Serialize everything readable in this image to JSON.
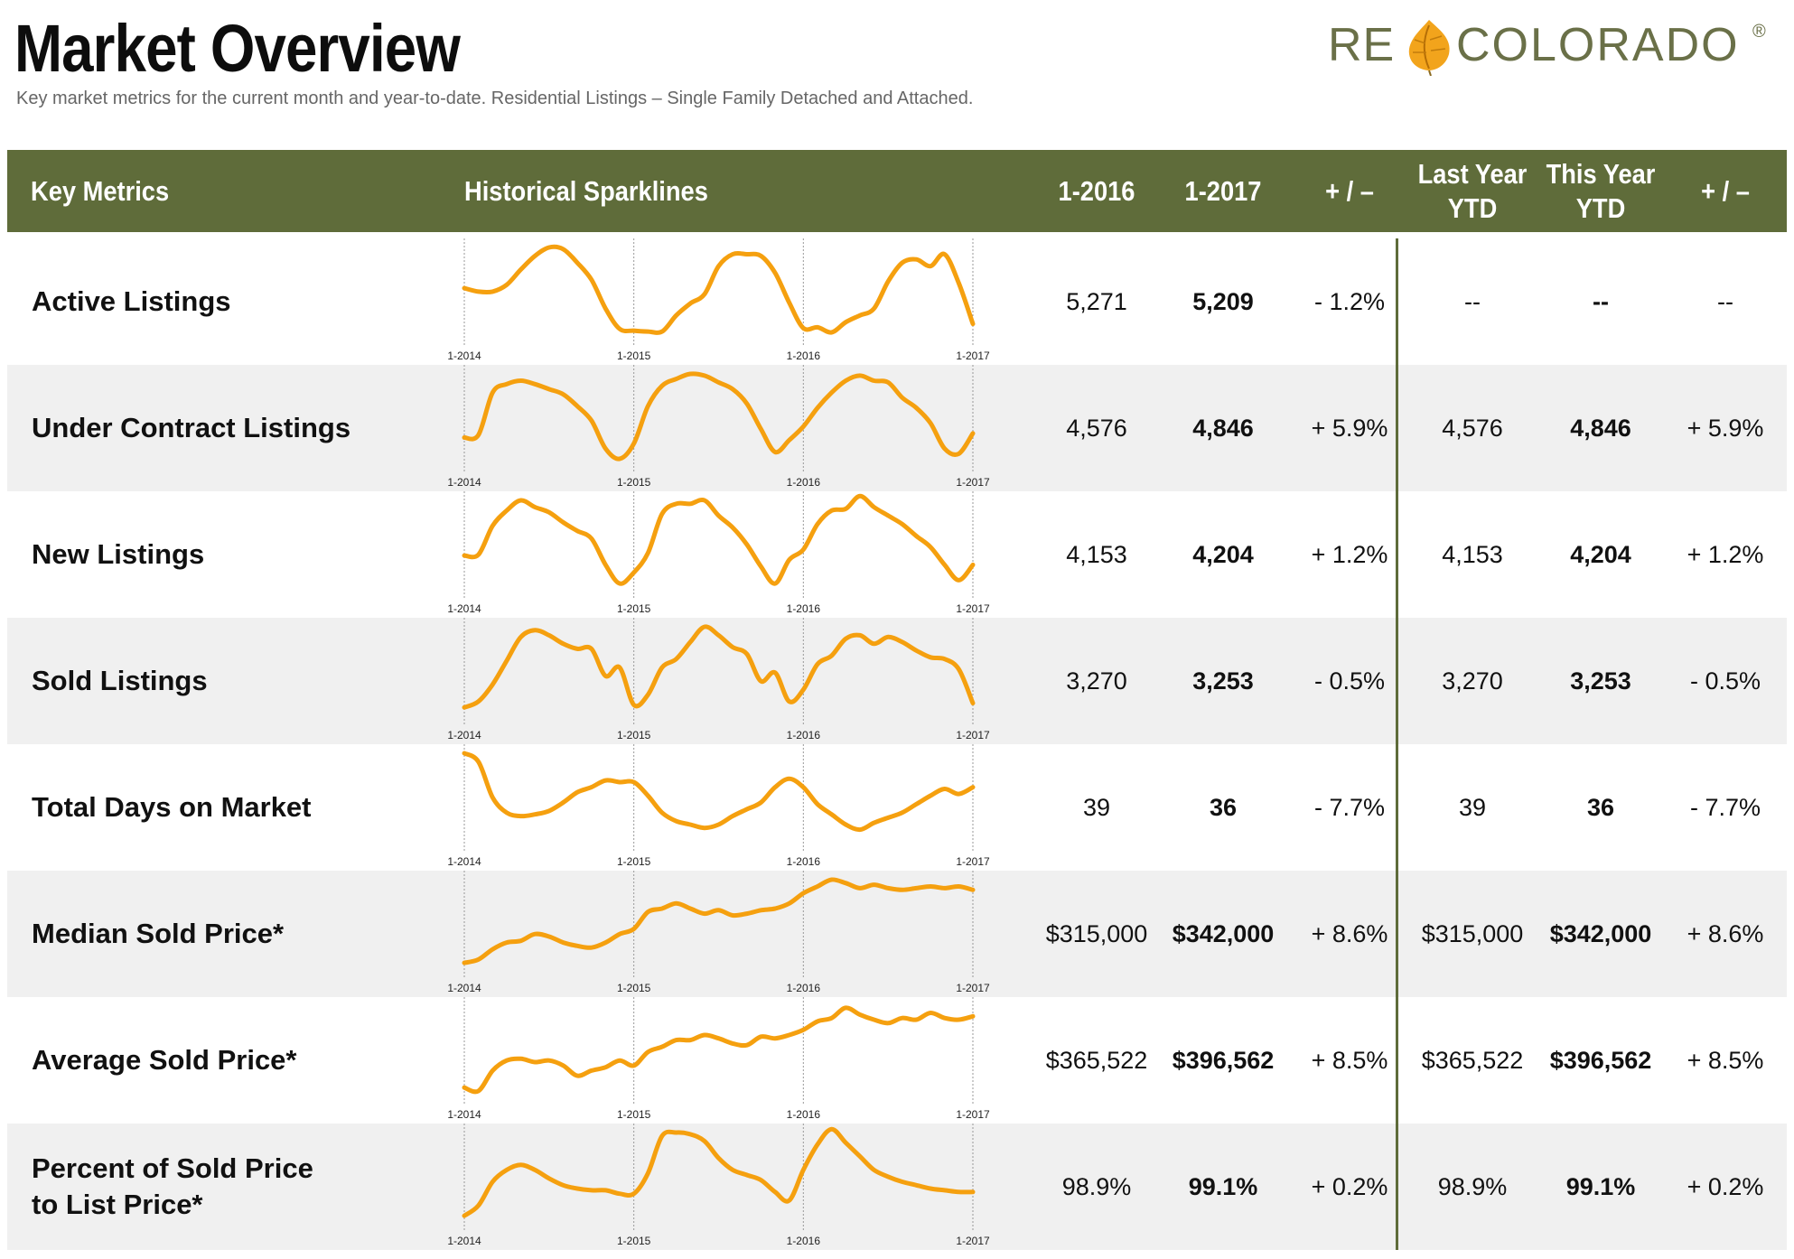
{
  "title": "Market Overview",
  "subtitle": "Key market metrics for the current month and year-to-date. Residential Listings – Single Family Detached and Attached.",
  "logo": {
    "left_text": "RE",
    "right_text": "COLORADO",
    "registered": "®",
    "leaf_icon": "aspen-leaf-icon",
    "colors": {
      "text": "#6a7048",
      "leaf": "#f2a41c"
    }
  },
  "colors": {
    "header_bg": "#5f6c3a",
    "row_shade": "#f0f0f0",
    "sparkline": "#f5a00f",
    "gridline": "#999999"
  },
  "header": {
    "key_metrics": "Key Metrics",
    "sparklines": "Historical Sparklines",
    "col_prev": "1-2016",
    "col_curr": "1-2017",
    "col_change": "+ / –",
    "col_ly_line1": "Last Year",
    "col_ly_line2": "YTD",
    "col_ty_line1": "This Year",
    "col_ty_line2": "YTD",
    "col_ytd_change": "+ / –"
  },
  "chart_data": {
    "type": "line",
    "x_tick_labels": [
      "1-2014",
      "1-2015",
      "1-2016",
      "1-2017"
    ],
    "x_range": [
      "1-2014",
      "1-2017"
    ],
    "note": "Each sparkline shows 37 monthly points, 1-2014 through 1-2017, relative scale without a value axis.",
    "series": [
      {
        "name": "Active Listings",
        "values": [
          0.52,
          0.48,
          0.48,
          0.56,
          0.74,
          0.9,
          1.0,
          0.98,
          0.82,
          0.62,
          0.28,
          0.04,
          0.02,
          0.01,
          0.01,
          0.2,
          0.34,
          0.45,
          0.78,
          0.92,
          0.92,
          0.9,
          0.7,
          0.35,
          0.05,
          0.06,
          0.0,
          0.12,
          0.2,
          0.28,
          0.6,
          0.82,
          0.86,
          0.78,
          0.92,
          0.58,
          0.1
        ]
      },
      {
        "name": "Under Contract Listings",
        "values": [
          0.25,
          0.28,
          0.78,
          0.88,
          0.92,
          0.88,
          0.82,
          0.76,
          0.62,
          0.45,
          0.12,
          0.0,
          0.18,
          0.62,
          0.86,
          0.94,
          1.0,
          0.98,
          0.9,
          0.82,
          0.65,
          0.35,
          0.08,
          0.22,
          0.38,
          0.6,
          0.78,
          0.92,
          0.98,
          0.92,
          0.9,
          0.72,
          0.6,
          0.42,
          0.12,
          0.06,
          0.3
        ]
      },
      {
        "name": "New Listings",
        "values": [
          0.35,
          0.36,
          0.7,
          0.88,
          1.0,
          0.92,
          0.86,
          0.74,
          0.64,
          0.55,
          0.24,
          0.02,
          0.15,
          0.38,
          0.84,
          0.96,
          0.96,
          1.0,
          0.82,
          0.68,
          0.48,
          0.22,
          0.02,
          0.3,
          0.42,
          0.72,
          0.88,
          0.9,
          1.06,
          0.92,
          0.82,
          0.72,
          0.58,
          0.45,
          0.24,
          0.06,
          0.24
        ]
      },
      {
        "name": "Sold Listings",
        "values": [
          0.05,
          0.12,
          0.32,
          0.6,
          0.88,
          0.96,
          0.9,
          0.8,
          0.74,
          0.74,
          0.42,
          0.52,
          0.08,
          0.2,
          0.52,
          0.62,
          0.82,
          1.0,
          0.9,
          0.76,
          0.68,
          0.36,
          0.46,
          0.12,
          0.26,
          0.56,
          0.66,
          0.86,
          0.9,
          0.8,
          0.88,
          0.82,
          0.72,
          0.64,
          0.62,
          0.5,
          0.1
        ]
      },
      {
        "name": "Total Days on Market",
        "values": [
          1.0,
          0.9,
          0.48,
          0.3,
          0.26,
          0.28,
          0.32,
          0.42,
          0.54,
          0.6,
          0.68,
          0.66,
          0.66,
          0.5,
          0.3,
          0.2,
          0.16,
          0.12,
          0.16,
          0.26,
          0.34,
          0.42,
          0.6,
          0.7,
          0.6,
          0.4,
          0.28,
          0.16,
          0.1,
          0.18,
          0.24,
          0.3,
          0.4,
          0.5,
          0.58,
          0.52,
          0.6
        ]
      },
      {
        "name": "Median Sold Price*",
        "values": [
          0.02,
          0.06,
          0.18,
          0.26,
          0.28,
          0.36,
          0.33,
          0.26,
          0.22,
          0.2,
          0.26,
          0.36,
          0.42,
          0.62,
          0.66,
          0.72,
          0.66,
          0.6,
          0.64,
          0.58,
          0.6,
          0.64,
          0.66,
          0.72,
          0.84,
          0.92,
          1.0,
          0.96,
          0.9,
          0.94,
          0.9,
          0.88,
          0.9,
          0.92,
          0.9,
          0.92,
          0.88
        ]
      },
      {
        "name": "Average Sold Price*",
        "values": [
          0.04,
          0.0,
          0.24,
          0.36,
          0.38,
          0.34,
          0.36,
          0.3,
          0.18,
          0.24,
          0.28,
          0.36,
          0.3,
          0.46,
          0.52,
          0.6,
          0.6,
          0.66,
          0.62,
          0.56,
          0.54,
          0.64,
          0.62,
          0.66,
          0.72,
          0.82,
          0.86,
          0.98,
          0.9,
          0.84,
          0.8,
          0.86,
          0.84,
          0.92,
          0.86,
          0.84,
          0.88
        ]
      },
      {
        "name": "Percent of Sold Price to List Price*",
        "values": [
          0.02,
          0.14,
          0.42,
          0.56,
          0.62,
          0.56,
          0.46,
          0.38,
          0.34,
          0.32,
          0.32,
          0.28,
          0.28,
          0.52,
          0.96,
          1.0,
          0.98,
          0.9,
          0.7,
          0.56,
          0.5,
          0.44,
          0.3,
          0.2,
          0.56,
          0.86,
          1.04,
          0.88,
          0.72,
          0.56,
          0.48,
          0.42,
          0.38,
          0.34,
          0.32,
          0.3,
          0.3
        ]
      }
    ]
  },
  "rows": [
    {
      "label_lines": [
        "Active Listings"
      ],
      "prev": "5,271",
      "curr": "5,209",
      "change": "- 1.2%",
      "ly": "--",
      "ty": "--",
      "ytd_change": "--"
    },
    {
      "label_lines": [
        "Under Contract Listings"
      ],
      "prev": "4,576",
      "curr": "4,846",
      "change": "+ 5.9%",
      "ly": "4,576",
      "ty": "4,846",
      "ytd_change": "+ 5.9%"
    },
    {
      "label_lines": [
        "New Listings"
      ],
      "prev": "4,153",
      "curr": "4,204",
      "change": "+ 1.2%",
      "ly": "4,153",
      "ty": "4,204",
      "ytd_change": "+ 1.2%"
    },
    {
      "label_lines": [
        "Sold Listings"
      ],
      "prev": "3,270",
      "curr": "3,253",
      "change": "- 0.5%",
      "ly": "3,270",
      "ty": "3,253",
      "ytd_change": "- 0.5%"
    },
    {
      "label_lines": [
        "Total Days on Market"
      ],
      "prev": "39",
      "curr": "36",
      "change": "- 7.7%",
      "ly": "39",
      "ty": "36",
      "ytd_change": "- 7.7%"
    },
    {
      "label_lines": [
        "Median Sold Price*"
      ],
      "prev": "$315,000",
      "curr": "$342,000",
      "change": "+ 8.6%",
      "ly": "$315,000",
      "ty": "$342,000",
      "ytd_change": "+ 8.6%"
    },
    {
      "label_lines": [
        "Average Sold Price*"
      ],
      "prev": "$365,522",
      "curr": "$396,562",
      "change": "+ 8.5%",
      "ly": "$365,522",
      "ty": "$396,562",
      "ytd_change": "+ 8.5%"
    },
    {
      "label_lines": [
        "Percent of Sold Price",
        "to List Price*"
      ],
      "prev": "98.9%",
      "curr": "99.1%",
      "change": "+ 0.2%",
      "ly": "98.9%",
      "ty": "99.1%",
      "ytd_change": "+ 0.2%"
    }
  ]
}
